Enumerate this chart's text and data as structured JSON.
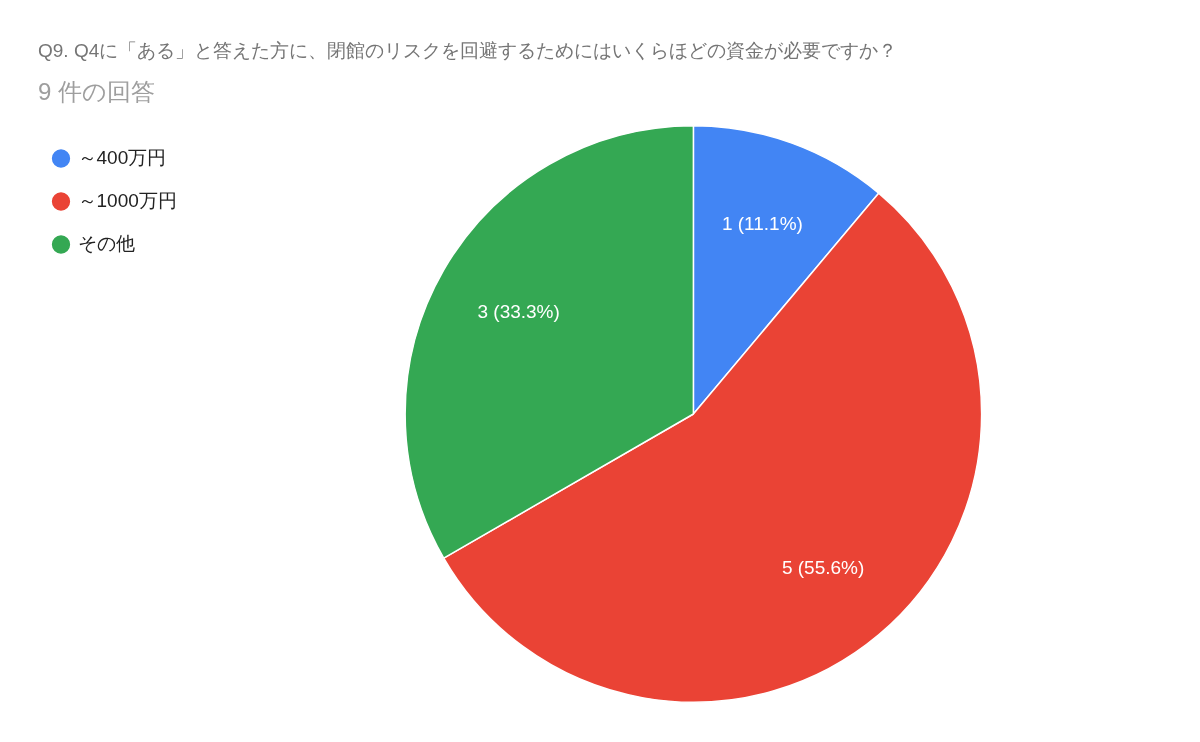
{
  "chart_data": {
    "type": "pie",
    "title": "Q9. Q4に「ある」と答えた方に、閉館のリスクを回避するためにはいくらほどの資金が必要ですか？",
    "subtitle": "9 件の回答",
    "categories": [
      "～400万円",
      "～1000万円",
      "その他"
    ],
    "values": [
      1,
      5,
      3
    ],
    "colors": [
      "#4285f4",
      "#ea4335",
      "#34a853"
    ],
    "value_labels": [
      "1 (11.1%)",
      "5 (55.6%)",
      "3 (33.3%)"
    ],
    "legend": "top left"
  }
}
